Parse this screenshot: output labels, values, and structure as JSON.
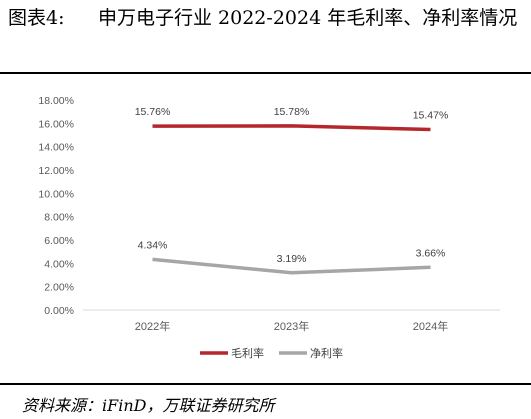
{
  "figure": {
    "label": "图表4:",
    "title": "申万电子行业 2022-2024 年毛利率、净利率情况",
    "source": "资料来源：iFinD，万联证券研究所"
  },
  "chart_data": {
    "type": "line",
    "categories": [
      "2022年",
      "2023年",
      "2024年"
    ],
    "series": [
      {
        "name": "毛利率",
        "values": [
          15.76,
          15.78,
          15.47
        ],
        "labels": [
          "15.76%",
          "15.78%",
          "15.47%"
        ],
        "color": "#b3272d"
      },
      {
        "name": "净利率",
        "values": [
          4.34,
          3.19,
          3.66
        ],
        "labels": [
          "4.34%",
          "3.19%",
          "3.66%"
        ],
        "color": "#a6a6a6"
      }
    ],
    "ylim": [
      0,
      18
    ],
    "ytick_labels": [
      "0.00%",
      "2.00%",
      "4.00%",
      "6.00%",
      "8.00%",
      "10.00%",
      "12.00%",
      "14.00%",
      "16.00%",
      "18.00%"
    ],
    "grid": false,
    "legend": "bottom",
    "title": "",
    "xlabel": "",
    "ylabel": ""
  }
}
